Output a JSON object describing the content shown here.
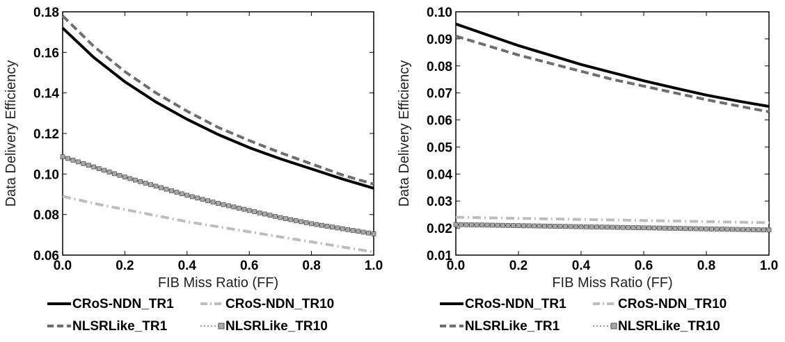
{
  "chart_data": [
    {
      "type": "line",
      "xlabel": "FIB Miss Ratio (FF)",
      "ylabel": "Data Delivery Efficiency",
      "xlim": [
        0.0,
        1.0
      ],
      "ylim": [
        0.06,
        0.18
      ],
      "xticks": [
        "0.0",
        "0.2",
        "0.4",
        "0.6",
        "0.8",
        "1.0"
      ],
      "yticks": [
        "0.06",
        "0.08",
        "0.10",
        "0.12",
        "0.14",
        "0.16",
        "0.18"
      ],
      "grid": false,
      "legend_position": "bottom",
      "x": [
        0.0,
        0.1,
        0.2,
        0.3,
        0.4,
        0.5,
        0.6,
        0.7,
        0.8,
        0.9,
        1.0
      ],
      "series": [
        {
          "name": "CRoS-NDN_TR1",
          "style": "solid",
          "color": "#000000",
          "values": [
            0.172,
            0.1575,
            0.1455,
            0.1355,
            0.127,
            0.1195,
            0.113,
            0.1075,
            0.1025,
            0.0975,
            0.093
          ]
        },
        {
          "name": "CRoS-NDN_TR10",
          "style": "dashdot",
          "color": "#bdbdbd",
          "values": [
            0.089,
            0.0855,
            0.0825,
            0.0795,
            0.0765,
            0.074,
            0.0715,
            0.069,
            0.0665,
            0.064,
            0.0615
          ]
        },
        {
          "name": "NLSRLike_TR1",
          "style": "dashed",
          "color": "#6e6e6e",
          "values": [
            0.178,
            0.163,
            0.1505,
            0.14,
            0.131,
            0.123,
            0.1165,
            0.1105,
            0.105,
            0.0995,
            0.095
          ]
        },
        {
          "name": "NLSRLike_TR10",
          "style": "square-markers",
          "color": "#9a9a9a",
          "values": [
            0.1085,
            0.1035,
            0.0985,
            0.094,
            0.0895,
            0.0855,
            0.082,
            0.0785,
            0.0755,
            0.073,
            0.0705
          ]
        }
      ]
    },
    {
      "type": "line",
      "xlabel": "FIB Miss Ratio (FF)",
      "ylabel": "Data Delivery Efficiency",
      "xlim": [
        0.0,
        1.0
      ],
      "ylim": [
        0.01,
        0.1
      ],
      "xticks": [
        "0.0",
        "0.2",
        "0.4",
        "0.6",
        "0.8",
        "1.0"
      ],
      "yticks": [
        "0.01",
        "0.02",
        "0.03",
        "0.04",
        "0.05",
        "0.06",
        "0.07",
        "0.08",
        "0.09",
        "0.10"
      ],
      "grid": false,
      "legend_position": "bottom",
      "x": [
        0.0,
        0.1,
        0.2,
        0.3,
        0.4,
        0.5,
        0.6,
        0.7,
        0.8,
        0.9,
        1.0
      ],
      "series": [
        {
          "name": "CRoS-NDN_TR1",
          "style": "solid",
          "color": "#000000",
          "values": [
            0.0955,
            0.0915,
            0.0875,
            0.084,
            0.0805,
            0.0775,
            0.0745,
            0.0718,
            0.0692,
            0.067,
            0.065
          ]
        },
        {
          "name": "CRoS-NDN_TR10",
          "style": "dashdot",
          "color": "#bdbdbd",
          "values": [
            0.024,
            0.0238,
            0.0236,
            0.0234,
            0.0232,
            0.023,
            0.0228,
            0.0226,
            0.0224,
            0.0222,
            0.022
          ]
        },
        {
          "name": "NLSRLike_TR1",
          "style": "dashed",
          "color": "#6e6e6e",
          "values": [
            0.091,
            0.0875,
            0.084,
            0.081,
            0.078,
            0.075,
            0.0725,
            0.07,
            0.0675,
            0.0652,
            0.063
          ]
        },
        {
          "name": "NLSRLike_TR10",
          "style": "square-markers",
          "color": "#9a9a9a",
          "values": [
            0.0213,
            0.0211,
            0.0209,
            0.0207,
            0.0205,
            0.0203,
            0.0201,
            0.0199,
            0.0197,
            0.0195,
            0.0193
          ]
        }
      ]
    }
  ]
}
